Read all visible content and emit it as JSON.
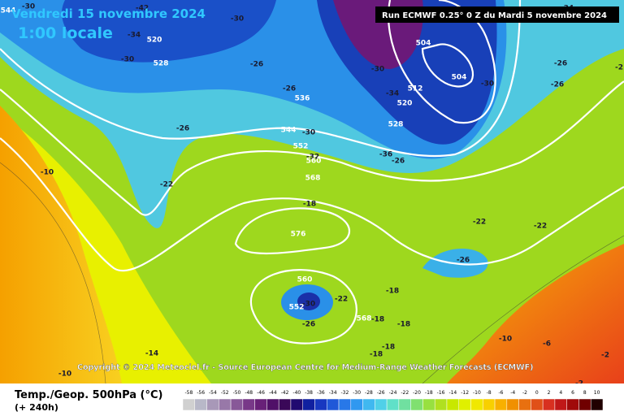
{
  "header": {
    "date": "Vendredi 15 novembre 2024",
    "time": "1:00 locale",
    "run": "Run ECMWF 0.25° 0 Z du Mardi 5 novembre 2024"
  },
  "copyright": "Copyright © 2024 Meteociel.fr - Source European Centre for Medium-Range Weather Forecasts (ECMWF)",
  "legend": {
    "title": "Temp./Geop. 500hPa (°C)",
    "lead": "(+ 240h)",
    "ticks": [
      -58,
      -56,
      -54,
      -52,
      -50,
      -48,
      -46,
      -44,
      -42,
      -40,
      -38,
      -36,
      -34,
      -32,
      -30,
      -28,
      -26,
      -24,
      -22,
      -20,
      -18,
      -16,
      -14,
      -12,
      -10,
      -8,
      -6,
      -4,
      -2,
      0,
      2,
      4,
      6,
      8,
      10
    ],
    "colors": [
      "#d0d0d0",
      "#b8b8c8",
      "#a898b8",
      "#9878a8",
      "#885898",
      "#783888",
      "#682078",
      "#501068",
      "#3a0858",
      "#200a70",
      "#1020a0",
      "#1838c0",
      "#2058d8",
      "#2878e8",
      "#3098f0",
      "#40b8f0",
      "#50d0e8",
      "#60e0c8",
      "#70e0a0",
      "#80e070",
      "#98e040",
      "#b0e020",
      "#c8e800",
      "#e0f000",
      "#f0e800",
      "#f8d000",
      "#f8b000",
      "#f09000",
      "#e87010",
      "#e05018",
      "#d83020",
      "#c01818",
      "#a00a0a",
      "#700000",
      "#200000"
    ]
  },
  "map": {
    "temperature_labels": [
      -30,
      -42,
      -34,
      -30,
      -30,
      -26,
      -26,
      -26,
      -30,
      -32,
      -36,
      -26,
      -18,
      -22,
      -22,
      -26,
      -30,
      -34,
      -30,
      -26,
      -26,
      -34,
      -10,
      -22,
      -14,
      -10,
      -10,
      -6,
      -2,
      -2,
      -22,
      -18,
      -18,
      -18,
      -18,
      -18,
      -26,
      -30,
      -2
    ],
    "geopotential_labels": [
      544,
      520,
      528,
      536,
      544,
      552,
      560,
      568,
      576,
      560,
      552,
      568,
      504,
      504,
      512,
      520,
      528
    ]
  }
}
